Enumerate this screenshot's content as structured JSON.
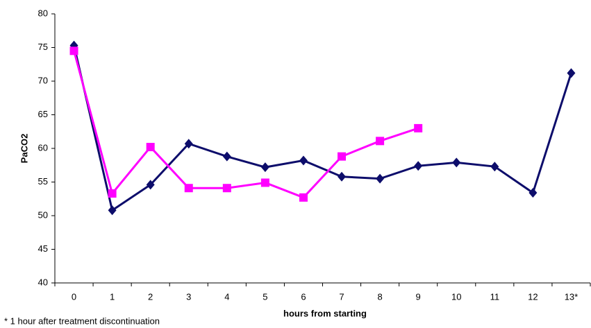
{
  "chart_data": {
    "type": "line",
    "y_label": "PaCO2",
    "x_label": "hours from starting",
    "footnote": "* 1 hour after treatment discontinuation",
    "categories": [
      "0",
      "1",
      "2",
      "3",
      "4",
      "5",
      "6",
      "7",
      "8",
      "9",
      "10",
      "11",
      "12",
      "13*"
    ],
    "series": [
      {
        "color": "#0d0d6b",
        "marker": "diamond",
        "values": [
          75.3,
          50.8,
          54.6,
          60.7,
          58.8,
          57.2,
          58.2,
          55.8,
          55.5,
          57.4,
          57.9,
          57.3,
          53.4,
          71.2
        ]
      },
      {
        "color": "#ff00ff",
        "marker": "square",
        "values": [
          74.5,
          53.3,
          60.2,
          54.1,
          54.1,
          54.9,
          52.7,
          58.8,
          61.1,
          63.0,
          null,
          null,
          null,
          null
        ]
      }
    ],
    "ylim": [
      40,
      80
    ],
    "yticks": [
      40,
      45,
      50,
      55,
      60,
      65,
      70,
      75,
      80
    ],
    "grid": false
  }
}
